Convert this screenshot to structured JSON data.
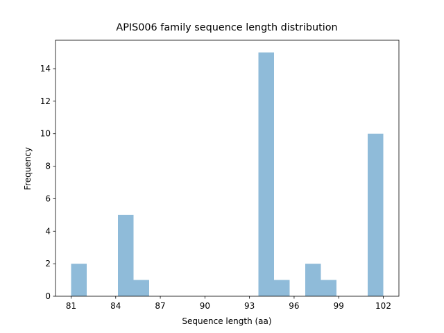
{
  "chart_data": {
    "type": "histogram",
    "title": "APIS006 family sequence length distribution",
    "x_label": "Sequence length (aa)",
    "y_label": "Frequency",
    "bins": [
      81,
      82.05,
      83.1,
      84.15,
      85.2,
      86.25,
      87.3,
      88.35,
      89.4,
      90.45,
      91.5,
      92.55,
      93.6,
      94.65,
      95.7,
      96.75,
      97.8,
      98.85,
      99.9,
      100.95,
      102
    ],
    "values": [
      2,
      0,
      0,
      5,
      1,
      0,
      0,
      0,
      0,
      0,
      0,
      0,
      15,
      1,
      0,
      2,
      1,
      0,
      0,
      10
    ],
    "color": "#8fbbd9",
    "xlim": [
      79.95,
      103.05
    ],
    "ylim": [
      0,
      15.75
    ],
    "xticks": [
      81,
      84,
      87,
      90,
      93,
      96,
      99,
      102
    ],
    "yticks": [
      0,
      2,
      4,
      6,
      8,
      10,
      12,
      14
    ],
    "grid": false
  }
}
